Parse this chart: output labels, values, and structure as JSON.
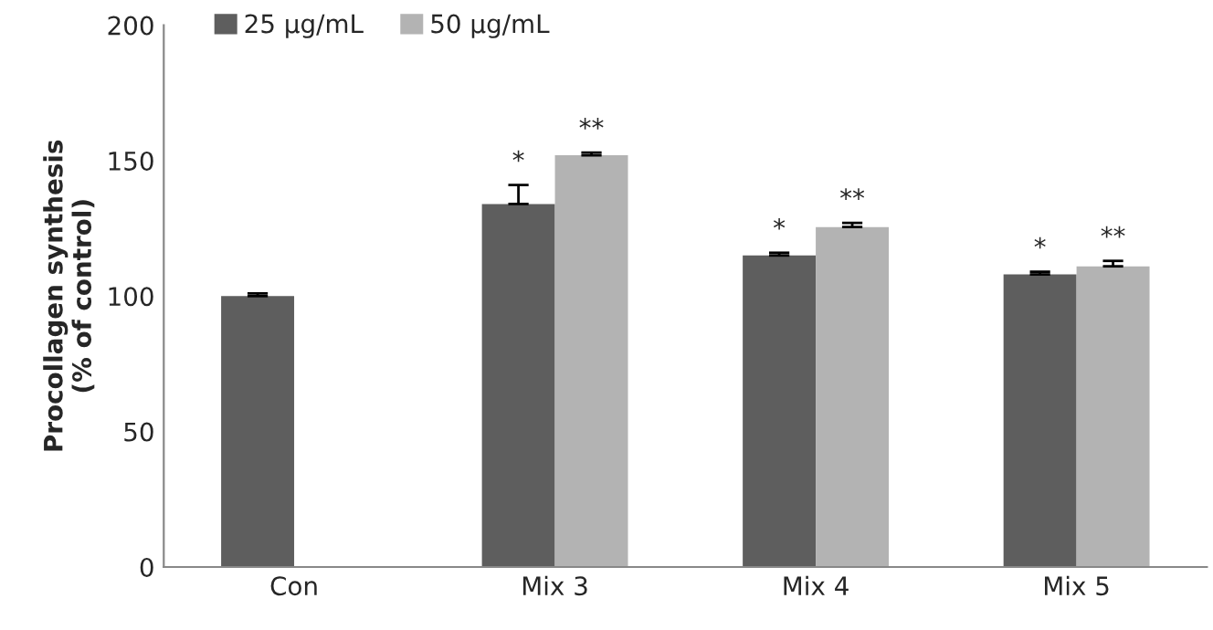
{
  "chart_data": {
    "type": "bar",
    "ylabel": "Procollagen synthesis\n(% of control)",
    "categories": [
      "Con",
      "Mix 3",
      "Mix 4",
      "Mix 5"
    ],
    "series": [
      {
        "name": "25 μg/mL",
        "color": "#5e5e5e",
        "values": [
          100,
          134,
          115,
          108
        ],
        "errors": [
          [
            100,
            101
          ],
          [
            134,
            141
          ],
          [
            115,
            116
          ],
          [
            108,
            109
          ]
        ]
      },
      {
        "name": "50 μg/mL",
        "color": "#b3b3b3",
        "values": [
          null,
          152,
          125.5,
          111
        ],
        "errors": [
          null,
          [
            152,
            153
          ],
          [
            125.5,
            127
          ],
          [
            111,
            113
          ]
        ]
      }
    ],
    "ylim": [
      0,
      200
    ],
    "yticks": [
      0,
      50,
      100,
      150,
      200
    ],
    "legend": "top left",
    "grid": false,
    "annotations": [
      {
        "text": "*",
        "x": "Mix 3",
        "y": 134
      },
      {
        "text": "**",
        "x": "Mix 3",
        "y": 152
      },
      {
        "text": "*",
        "x": "Mix 4",
        "y": 115
      },
      {
        "text": "**",
        "x": "Mix 4",
        "y": 125.5
      },
      {
        "text": "*",
        "x": "Mix 5",
        "y": 108
      },
      {
        "text": "**",
        "x": "Mix 5",
        "y": 111
      }
    ]
  }
}
